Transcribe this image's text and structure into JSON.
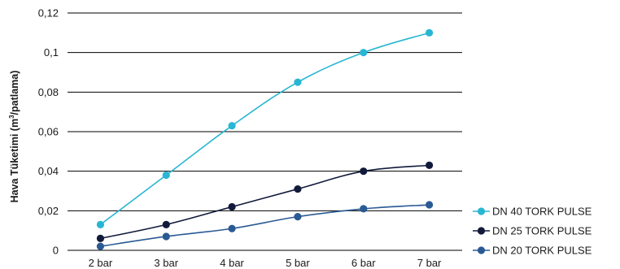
{
  "chart_data": {
    "type": "line",
    "categories": [
      "2 bar",
      "3 bar",
      "4 bar",
      "5 bar",
      "6 bar",
      "7 bar"
    ],
    "ylabel_prefix": "Hava Tüketimi (m",
    "ylabel_sup": "3",
    "ylabel_suffix": "/patlama)",
    "ylim": [
      0,
      0.12
    ],
    "yticks": [
      0,
      0.02,
      0.04,
      0.06,
      0.08,
      0.1,
      0.12
    ],
    "ytick_labels": [
      "0",
      "0,02",
      "0,04",
      "0,06",
      "0,08",
      "0,1",
      "0,12"
    ],
    "grid": true,
    "legend_position": "bottom-right",
    "series": [
      {
        "name": "DN 40 TORK PULSE",
        "color": "#29b6d3",
        "values": [
          0.013,
          0.038,
          0.063,
          0.085,
          0.1,
          0.11
        ]
      },
      {
        "name": "DN 25 TORK PULSE",
        "color": "#111a3a",
        "values": [
          0.006,
          0.013,
          0.022,
          0.031,
          0.04,
          0.043
        ]
      },
      {
        "name": "DN 20 TORK PULSE",
        "color": "#2a5a94",
        "values": [
          0.002,
          0.007,
          0.011,
          0.017,
          0.021,
          0.023
        ]
      }
    ]
  }
}
